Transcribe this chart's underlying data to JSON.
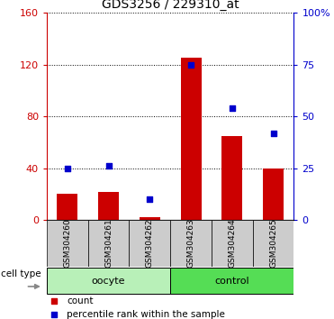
{
  "title": "GDS3256 / 229310_at",
  "samples": [
    "GSM304260",
    "GSM304261",
    "GSM304262",
    "GSM304263",
    "GSM304264",
    "GSM304265"
  ],
  "counts": [
    20,
    22,
    2,
    125,
    65,
    40
  ],
  "percentile_ranks": [
    25,
    26,
    10,
    75,
    54,
    42
  ],
  "groups": [
    {
      "label": "oocyte",
      "color": "#b8f0b8",
      "start": 0,
      "end": 3
    },
    {
      "label": "control",
      "color": "#55dd55",
      "start": 3,
      "end": 6
    }
  ],
  "ylim_left": [
    0,
    160
  ],
  "ylim_right": [
    0,
    100
  ],
  "yticks_left": [
    0,
    40,
    80,
    120,
    160
  ],
  "ytick_labels_left": [
    "0",
    "40",
    "80",
    "120",
    "160"
  ],
  "yticks_right": [
    0,
    25,
    50,
    75,
    100
  ],
  "ytick_labels_right": [
    "0",
    "25",
    "50",
    "75",
    "100%"
  ],
  "bar_color": "#cc0000",
  "dot_color": "#0000cc",
  "left_axis_color": "#cc0000",
  "right_axis_color": "#0000cc",
  "bg_color": "white",
  "tick_bg_color": "#cccccc",
  "group_label_fontsize": 8,
  "title_fontsize": 10,
  "legend_count_label": "count",
  "legend_percentile_label": "percentile rank within the sample",
  "cell_type_label": "cell type"
}
